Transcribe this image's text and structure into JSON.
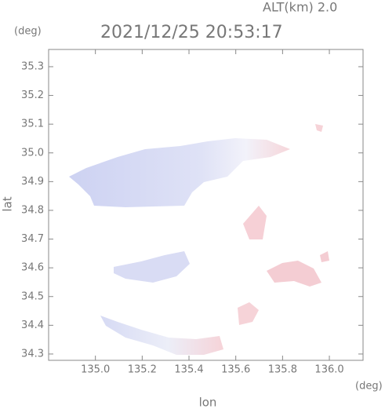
{
  "chart_data": {
    "type": "map",
    "altitude_label": "ALT(km) 2.0",
    "title": "2021/12/25 20:53:17",
    "y_unit": "(deg)",
    "x_unit": "(deg)",
    "x_label": "lon",
    "y_label": "lat",
    "xlim": [
      134.8,
      136.144
    ],
    "ylim": [
      34.278,
      35.36
    ],
    "xticks": [
      {
        "value": 135.0,
        "label": "135.0"
      },
      {
        "value": 135.2,
        "label": "135.2"
      },
      {
        "value": 135.4,
        "label": "135.4"
      },
      {
        "value": 135.6,
        "label": "135.6"
      },
      {
        "value": 135.8,
        "label": "135.8"
      },
      {
        "value": 136.0,
        "label": "136.0"
      }
    ],
    "yticks": [
      {
        "value": 34.3,
        "label": "34.3"
      },
      {
        "value": 34.4,
        "label": "34.4"
      },
      {
        "value": 34.5,
        "label": "34.5"
      },
      {
        "value": 34.6,
        "label": "34.6"
      },
      {
        "value": 34.7,
        "label": "34.7"
      },
      {
        "value": 34.8,
        "label": "34.8"
      },
      {
        "value": 34.9,
        "label": "34.9"
      },
      {
        "value": 35.0,
        "label": "35.0"
      },
      {
        "value": 35.1,
        "label": "35.1"
      },
      {
        "value": 35.2,
        "label": "35.2"
      },
      {
        "value": 35.3,
        "label": "35.3"
      }
    ]
  }
}
